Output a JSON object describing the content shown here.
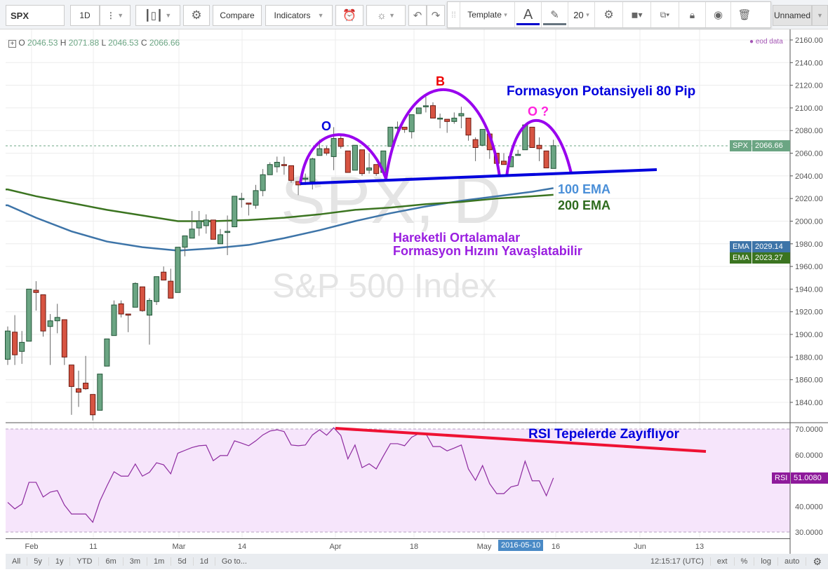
{
  "toolbar": {
    "symbol": "SPX",
    "interval": "1D",
    "compare": "Compare",
    "indicators": "Indicators",
    "layout_name": "Unnamed"
  },
  "drawing_toolbar": {
    "template": "Template",
    "text_tool": "A",
    "font_size": "20",
    "text_color": "#0000cc",
    "line_color": "#66747f"
  },
  "legend": {
    "o_label": "O",
    "o": "2046.53",
    "h_label": "H",
    "h": "2071.88",
    "l_label": "L",
    "l": "2046.53",
    "c_label": "C",
    "c": "2066.66",
    "data_source": "eod data"
  },
  "watermark": {
    "line1": "SPX, D",
    "line2": "S&P 500 Index"
  },
  "price_axis": {
    "ticks": [
      "2160.00",
      "2140.00",
      "2120.00",
      "2100.00",
      "2080.00",
      "2060.00",
      "2040.00",
      "2020.00",
      "2000.00",
      "1980.00",
      "1960.00",
      "1940.00",
      "1920.00",
      "1900.00",
      "1880.00",
      "1860.00",
      "1840.00"
    ],
    "spx_tag": "SPX",
    "spx_value": "2066.66",
    "ema_tag": "EMA",
    "ema100_value": "2029.14",
    "ema200_value": "2023.27"
  },
  "rsi_axis": {
    "ticks": [
      "70.0000",
      "60.0000",
      "40.0000",
      "30.0000"
    ],
    "rsi_tag": "RSI",
    "rsi_value": "51.0080"
  },
  "time_axis": {
    "labels": [
      "Feb",
      "11",
      "Mar",
      "14",
      "Apr",
      "18",
      "May",
      "16",
      "Jun",
      "13"
    ],
    "crosshair_date": "2016-05-10"
  },
  "annotations": {
    "left_shoulder": "O",
    "head": "B",
    "right_shoulder": "O ?",
    "potential": "Formasyon Potansiyeli 80 Pip",
    "ema100": "100 EMA",
    "ema200": "200 EMA",
    "ma_note_1": "Hareketli Ortalamalar",
    "ma_note_2": "Formasyon Hızını Yavaşlatabilir",
    "rsi_note": "RSI Tepelerde Zayıflıyor"
  },
  "bottom_bar": {
    "ranges": [
      "All",
      "5y",
      "1y",
      "YTD",
      "6m",
      "3m",
      "1m",
      "5d",
      "1d"
    ],
    "goto": "Go to...",
    "clock": "12:15:17 (UTC)",
    "ext": "ext",
    "percent": "%",
    "log": "log",
    "auto": "auto"
  },
  "colors": {
    "up": "#6ba583",
    "down": "#d75442",
    "ema100": "#3d74a8",
    "ema200": "#3b7420",
    "rsi": "#8e2ba0",
    "pattern_arc": "#9900ee",
    "neckline": "#0000dd",
    "rsi_trend": "#ee1133"
  },
  "chart_data": {
    "type": "candlestick",
    "ylim": [
      1830,
      2165
    ],
    "ohlc": [
      [
        1878,
        1907,
        1873,
        1903
      ],
      [
        1902,
        1917,
        1873,
        1882
      ],
      [
        1885,
        1903,
        1874,
        1893
      ],
      [
        1894,
        1940,
        1894,
        1940
      ],
      [
        1939,
        1947,
        1921,
        1937
      ],
      [
        1935,
        1935,
        1898,
        1903
      ],
      [
        1907,
        1918,
        1873,
        1912
      ],
      [
        1912,
        1927,
        1901,
        1915
      ],
      [
        1913,
        1913,
        1873,
        1880
      ],
      [
        1873,
        1873,
        1829,
        1854
      ],
      [
        1852,
        1868,
        1836,
        1849
      ],
      [
        1857,
        1881,
        1851,
        1852
      ],
      [
        1847,
        1847,
        1824,
        1829
      ],
      [
        1833,
        1865,
        1833,
        1865
      ],
      [
        1872,
        1896,
        1872,
        1896
      ],
      [
        1899,
        1930,
        1899,
        1926
      ],
      [
        1927,
        1930,
        1915,
        1918
      ],
      [
        1918,
        1918,
        1902,
        1917
      ],
      [
        1924,
        1946,
        1924,
        1945
      ],
      [
        1942,
        1942,
        1920,
        1921
      ],
      [
        1917,
        1932,
        1891,
        1930
      ],
      [
        1929,
        1951,
        1926,
        1951
      ],
      [
        1955,
        1960,
        1948,
        1948
      ],
      [
        1947,
        1958,
        1932,
        1932
      ],
      [
        1937,
        1977,
        1937,
        1977
      ],
      [
        1977,
        1987,
        1969,
        1987
      ],
      [
        1985,
        2009,
        1985,
        1993
      ],
      [
        1994,
        2009,
        1987,
        2000
      ],
      [
        1996,
        2006,
        1989,
        2001
      ],
      [
        2001,
        2001,
        1984,
        1984
      ],
      [
        1980,
        1993,
        1980,
        1988
      ],
      [
        1990,
        2005,
        1970,
        1991
      ],
      [
        1995,
        2022,
        1995,
        2022
      ],
      [
        2020,
        2025,
        2012,
        2020
      ],
      [
        2016,
        2016,
        2005,
        2015
      ],
      [
        2014,
        2032,
        2011,
        2027
      ],
      [
        2027,
        2046,
        2022,
        2041
      ],
      [
        2041,
        2052,
        2041,
        2050
      ],
      [
        2048,
        2057,
        2043,
        2052
      ],
      [
        2050,
        2057,
        2041,
        2049
      ],
      [
        2049,
        2049,
        2034,
        2036
      ],
      [
        2035,
        2035,
        2023,
        2032
      ],
      [
        2037,
        2042,
        2032,
        2038
      ],
      [
        2035,
        2056,
        2028,
        2055
      ],
      [
        2058,
        2072,
        2058,
        2064
      ],
      [
        2064,
        2066,
        2058,
        2060
      ],
      [
        2057,
        2083,
        2045,
        2073
      ],
      [
        2073,
        2075,
        2064,
        2066
      ],
      [
        2062,
        2062,
        2043,
        2043
      ],
      [
        2045,
        2067,
        2045,
        2067
      ],
      [
        2063,
        2063,
        2040,
        2042
      ],
      [
        2045,
        2060,
        2042,
        2047
      ],
      [
        2050,
        2050,
        2040,
        2042
      ],
      [
        2043,
        2062,
        2043,
        2062
      ],
      [
        2066,
        2083,
        2066,
        2083
      ],
      [
        2082,
        2088,
        2076,
        2083
      ],
      [
        2083,
        2083,
        2078,
        2081
      ],
      [
        2079,
        2094,
        2073,
        2094
      ],
      [
        2095,
        2100,
        2095,
        2100
      ],
      [
        2101.5,
        2110,
        2096,
        2101.9
      ],
      [
        2102,
        2105,
        2091,
        2091
      ],
      [
        2091,
        2095,
        2082,
        2091
      ],
      [
        2090,
        2090,
        2078,
        2088
      ],
      [
        2088,
        2096,
        2086,
        2091
      ],
      [
        2093,
        2101,
        2082,
        2095
      ],
      [
        2091,
        2091,
        2071,
        2076
      ],
      [
        2072,
        2074,
        2053,
        2065
      ],
      [
        2067,
        2081,
        2067,
        2081
      ],
      [
        2077,
        2077,
        2055,
        2063
      ],
      [
        2060,
        2060,
        2051,
        2051
      ],
      [
        2053,
        2060,
        2050,
        2050
      ],
      [
        2048,
        2057,
        2048,
        2057
      ],
      [
        2058,
        2063,
        2058,
        2059
      ],
      [
        2063,
        2085,
        2063,
        2085
      ],
      [
        2083,
        2083,
        2065,
        2065
      ],
      [
        2067,
        2074,
        2053,
        2064
      ],
      [
        2062,
        2062,
        2047,
        2047
      ],
      [
        2046.53,
        2071.88,
        2046.53,
        2066.66
      ]
    ],
    "ema_sample_index": [
      0,
      4,
      9,
      14,
      19,
      24,
      29,
      34,
      39,
      44,
      49,
      54,
      59,
      64,
      69,
      74,
      77
    ],
    "ema100": [
      2014,
      2003,
      1991,
      1982,
      1977,
      1974,
      1976,
      1979,
      1985,
      1992,
      2000,
      2007,
      2013,
      2018,
      2022,
      2026,
      2029.14
    ],
    "ema200": [
      2028,
      2022,
      2016,
      2010,
      2005,
      2000,
      2000,
      2001,
      2003,
      2006,
      2010,
      2012,
      2015,
      2017,
      2020,
      2022,
      2023.27
    ],
    "rsi": [
      41.5,
      39,
      40.9,
      49.3,
      49.3,
      43.6,
      45.5,
      46.1,
      40.5,
      37,
      37,
      37,
      33.8,
      42,
      47.9,
      53.4,
      51.7,
      51.7,
      56.4,
      51.7,
      53.2,
      56.9,
      56.1,
      52.6,
      60.6,
      61.7,
      62.8,
      63.5,
      63.7,
      57.7,
      59.7,
      59.7,
      65.4,
      64.5,
      63.5,
      65.4,
      67.7,
      69.2,
      69.7,
      69,
      63.8,
      63.5,
      63.8,
      67.7,
      69.7,
      67.6,
      70.5,
      67.5,
      58.4,
      63.8,
      55,
      56.5,
      54.5,
      59.5,
      64.3,
      64.3,
      63.5,
      66.8,
      68.2,
      68.2,
      63.2,
      63.2,
      61.5,
      62.6,
      63.8,
      54.5,
      50.1,
      55.8,
      48.8,
      44.9,
      44.9,
      47.5,
      48.2,
      57.5,
      49.9,
      49.9,
      44.1,
      51.008
    ],
    "rsi_ylim": [
      30,
      70
    ]
  }
}
